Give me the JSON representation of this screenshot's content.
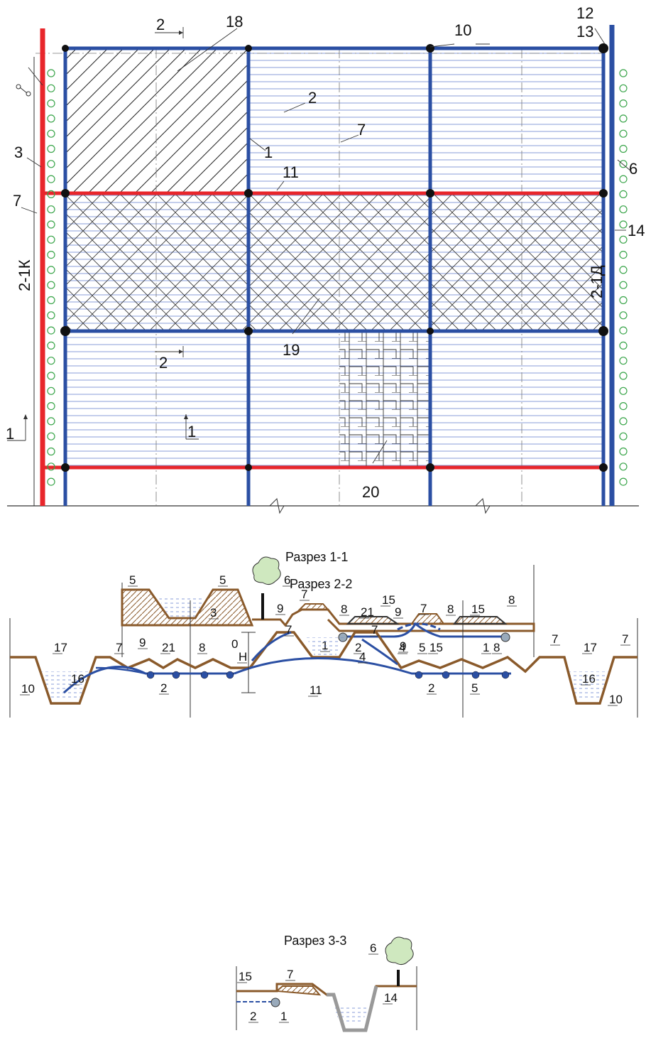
{
  "plan": {
    "labels": {
      "l1": "1",
      "l2": "2",
      "l3": "3",
      "l6": "6",
      "l7a": "7",
      "l7b": "7",
      "l10": "10",
      "l11": "11",
      "l12": "12",
      "l13": "13",
      "l14": "14",
      "l18": "18",
      "l19": "19",
      "l20": "20",
      "sec2top": "2",
      "sec2mid": "2",
      "sec1left": "1",
      "sec1mid": "1",
      "canal_left": "2-1К",
      "canal_right": "2-1Д",
      "l2b": "2"
    }
  },
  "section1": {
    "title": "Разрез 1-1",
    "labels": [
      "5",
      "5",
      "6",
      "7",
      "3",
      "9",
      "8",
      "21",
      "15",
      "9",
      "7",
      "8",
      "15",
      "8",
      "1",
      "2",
      "4",
      "5",
      "1"
    ]
  },
  "section2": {
    "title": "Разрез 2-2",
    "labels": [
      "7",
      "7",
      "17",
      "7",
      "9",
      "21",
      "8",
      "H",
      "10",
      "16",
      "2",
      "11",
      "4",
      "9",
      "15",
      "8",
      "7",
      "17",
      "7",
      "2",
      "5",
      "16",
      "10"
    ],
    "h0": "H",
    "h0sub": "0"
  },
  "section3": {
    "title": "Разрез 3-3",
    "labels": [
      "6",
      "15",
      "7",
      "14",
      "2",
      "1"
    ]
  },
  "colors": {
    "red": "#e8262b",
    "blue": "#2b4fa3",
    "brown": "#8a5a2b",
    "green": "#3aa54a"
  }
}
